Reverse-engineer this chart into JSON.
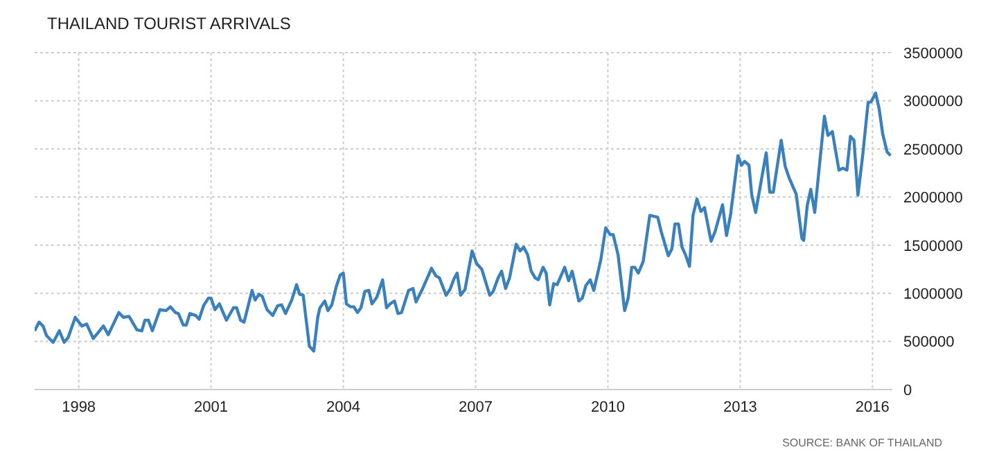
{
  "chart_data": {
    "type": "line",
    "title": "THAILAND TOURIST ARRIVALS",
    "annotations": [
      "SOURCE: BANK OF THAILAND"
    ],
    "x": [
      1997.0,
      1997.1,
      1997.19,
      1997.27,
      1997.42,
      1997.56,
      1997.67,
      1997.76,
      1997.92,
      1998.07,
      1998.18,
      1998.33,
      1998.56,
      1998.67,
      1998.91,
      1999.01,
      1999.14,
      1999.32,
      1999.43,
      1999.5,
      1999.58,
      1999.67,
      1999.84,
      1999.98,
      2000.08,
      2000.19,
      2000.26,
      2000.37,
      2000.44,
      2000.52,
      2000.65,
      2000.73,
      2000.83,
      2000.94,
      2001.0,
      2001.09,
      2001.19,
      2001.35,
      2001.51,
      2001.58,
      2001.67,
      2001.75,
      2001.93,
      2002.0,
      2002.09,
      2002.16,
      2002.27,
      2002.4,
      2002.51,
      2002.6,
      2002.69,
      2002.83,
      2002.94,
      2003.01,
      2003.09,
      2003.23,
      2003.33,
      2003.42,
      2003.47,
      2003.58,
      2003.65,
      2003.74,
      2003.84,
      2003.93,
      2004.0,
      2004.07,
      2004.16,
      2004.24,
      2004.32,
      2004.4,
      2004.49,
      2004.58,
      2004.65,
      2004.76,
      2004.89,
      2004.98,
      2005.06,
      2005.16,
      2005.24,
      2005.32,
      2005.48,
      2005.58,
      2005.65,
      2005.8,
      2006.0,
      2006.1,
      2006.18,
      2006.33,
      2006.42,
      2006.51,
      2006.58,
      2006.66,
      2006.76,
      2006.92,
      2007.02,
      2007.14,
      2007.32,
      2007.4,
      2007.51,
      2007.59,
      2007.68,
      2007.77,
      2007.92,
      2008.01,
      2008.09,
      2008.18,
      2008.26,
      2008.35,
      2008.42,
      2008.53,
      2008.6,
      2008.68,
      2008.77,
      2008.85,
      2009.02,
      2009.11,
      2009.19,
      2009.34,
      2009.42,
      2009.5,
      2009.6,
      2009.68,
      2009.84,
      2009.95,
      2010.05,
      2010.12,
      2010.23,
      2010.38,
      2010.46,
      2010.54,
      2010.61,
      2010.69,
      2010.8,
      2010.95,
      2011.04,
      2011.13,
      2011.21,
      2011.37,
      2011.45,
      2011.52,
      2011.6,
      2011.68,
      2011.76,
      2011.85,
      2011.93,
      2012.02,
      2012.11,
      2012.19,
      2012.34,
      2012.43,
      2012.6,
      2012.69,
      2012.78,
      2012.95,
      2013.03,
      2013.1,
      2013.2,
      2013.26,
      2013.35,
      2013.59,
      2013.67,
      2013.75,
      2013.93,
      2014.02,
      2014.11,
      2014.27,
      2014.4,
      2014.44,
      2014.52,
      2014.6,
      2014.69,
      2014.91,
      2014.99,
      2015.09,
      2015.16,
      2015.24,
      2015.33,
      2015.42,
      2015.5,
      2015.58,
      2015.67,
      2015.78,
      2015.9,
      2015.97,
      2016.07,
      2016.15,
      2016.23,
      2016.33,
      2016.41
    ],
    "series": [
      {
        "color": "#3a80bd",
        "values": [
          610000,
          700000,
          660000,
          560000,
          490000,
          610000,
          490000,
          540000,
          750000,
          660000,
          680000,
          530000,
          660000,
          570000,
          800000,
          750000,
          760000,
          620000,
          610000,
          720000,
          720000,
          610000,
          830000,
          820000,
          860000,
          800000,
          790000,
          670000,
          670000,
          790000,
          770000,
          730000,
          870000,
          950000,
          950000,
          830000,
          890000,
          720000,
          850000,
          850000,
          720000,
          700000,
          1030000,
          930000,
          990000,
          970000,
          830000,
          770000,
          870000,
          880000,
          790000,
          930000,
          1090000,
          990000,
          980000,
          450000,
          400000,
          750000,
          850000,
          920000,
          820000,
          880000,
          1070000,
          1190000,
          1210000,
          890000,
          860000,
          860000,
          800000,
          850000,
          1020000,
          1030000,
          890000,
          960000,
          1140000,
          850000,
          890000,
          920000,
          790000,
          800000,
          1030000,
          1050000,
          910000,
          1050000,
          1260000,
          1180000,
          1160000,
          980000,
          1040000,
          1150000,
          1210000,
          980000,
          1040000,
          1440000,
          1310000,
          1250000,
          980000,
          1020000,
          1160000,
          1230000,
          1050000,
          1160000,
          1510000,
          1440000,
          1480000,
          1400000,
          1230000,
          1160000,
          1140000,
          1270000,
          1210000,
          880000,
          1100000,
          1090000,
          1270000,
          1130000,
          1230000,
          920000,
          950000,
          1080000,
          1140000,
          1030000,
          1350000,
          1680000,
          1610000,
          1610000,
          1400000,
          820000,
          950000,
          1270000,
          1270000,
          1210000,
          1330000,
          1810000,
          1800000,
          1790000,
          1640000,
          1390000,
          1460000,
          1720000,
          1720000,
          1480000,
          1400000,
          1280000,
          1810000,
          1980000,
          1850000,
          1890000,
          1540000,
          1640000,
          1920000,
          1600000,
          1810000,
          2430000,
          2330000,
          2370000,
          2330000,
          2030000,
          1840000,
          2460000,
          2050000,
          2050000,
          2590000,
          2320000,
          2200000,
          2030000,
          1570000,
          1550000,
          1910000,
          2080000,
          1840000,
          2840000,
          2640000,
          2680000,
          2490000,
          2280000,
          2300000,
          2280000,
          2630000,
          2590000,
          2020000,
          2440000,
          2980000,
          2990000,
          3080000,
          2920000,
          2660000,
          2470000,
          2430000
        ]
      }
    ],
    "xlim": [
      1997.0,
      2016.45
    ],
    "xticks": [
      1998,
      2001,
      2004,
      2007,
      2010,
      2013,
      2016
    ],
    "ylim": [
      0,
      3500000
    ],
    "yticks": [
      0,
      500000,
      1000000,
      1500000,
      2000000,
      2500000,
      3000000,
      3500000
    ],
    "grid": true
  }
}
